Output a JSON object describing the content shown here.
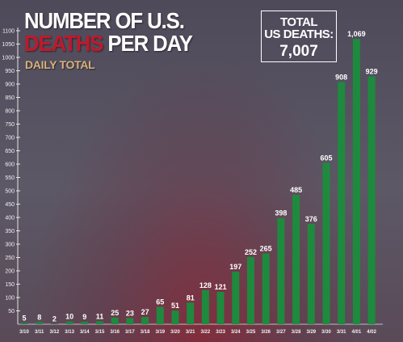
{
  "header": {
    "title_line1": "NUMBER OF U.S.",
    "title_line2_red": "DEATHS",
    "title_line2_white": " PER DAY",
    "subtitle": "DAILY TOTAL"
  },
  "total_box": {
    "label_line1": "TOTAL",
    "label_line2": "US DEATHS:",
    "value": "7,007"
  },
  "colors": {
    "bar": "#1e8a3e",
    "accent_red": "#c0192c",
    "subtitle": "#d8b27a",
    "label": "#ffffff"
  },
  "chart_data": {
    "type": "bar",
    "title": "NUMBER OF U.S. DEATHS PER DAY",
    "subtitle": "DAILY TOTAL",
    "categories": [
      "3/10",
      "3/11",
      "3/12",
      "3/13",
      "3/14",
      "3/15",
      "3/16",
      "3/17",
      "3/18",
      "3/19",
      "3/20",
      "3/21",
      "3/22",
      "3/23",
      "3/24",
      "3/25",
      "3/26",
      "3/27",
      "3/28",
      "3/29",
      "3/30",
      "3/31",
      "4/01",
      "4/02"
    ],
    "values": [
      5,
      8,
      2,
      10,
      9,
      11,
      25,
      23,
      27,
      65,
      51,
      81,
      128,
      121,
      197,
      252,
      265,
      398,
      485,
      376,
      605,
      908,
      1069,
      929
    ],
    "data_labels": [
      "5",
      "8",
      "2",
      "10",
      "9",
      "11",
      "25",
      "23",
      "27",
      "65",
      "51",
      "81",
      "128",
      "121",
      "197",
      "252",
      "265",
      "398",
      "485",
      "376",
      "605",
      "908",
      "1,069",
      "929"
    ],
    "y_ticks": [
      50,
      100,
      150,
      200,
      250,
      300,
      350,
      400,
      450,
      500,
      550,
      600,
      650,
      700,
      750,
      800,
      850,
      900,
      950,
      1000,
      1050,
      1100
    ],
    "y_tick_labels": [
      "50",
      "100",
      "150",
      "200",
      "250",
      "300",
      "350",
      "400",
      "450",
      "500",
      "550",
      "600",
      "650",
      "700",
      "750",
      "800",
      "850",
      "900",
      "950",
      "1000",
      "1050",
      "1100"
    ],
    "ylim": [
      0,
      1100
    ],
    "xlabel": "",
    "ylabel": "",
    "grid": false,
    "legend": "none"
  }
}
